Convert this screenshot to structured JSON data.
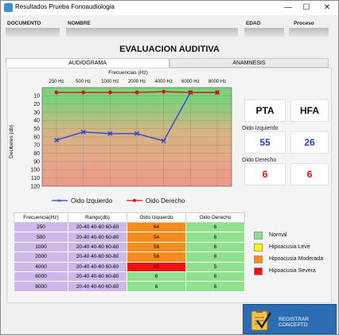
{
  "window": {
    "title": "Resultados Prueba Fonoaudiologia",
    "min_glyph": "—",
    "max_glyph": "☐",
    "close_glyph": "✕"
  },
  "header": {
    "documento_label": "DOCUMENTO",
    "nombre_label": "NOMBRE",
    "edad_label": "EDAD",
    "proceso_label": "Proceso"
  },
  "page_title": "EVALUACION AUDITIVA",
  "tabs": [
    {
      "label": "AUDIOGRAMA",
      "active": true
    },
    {
      "label": "ANAMNESIS",
      "active": false
    }
  ],
  "audiogram": {
    "x_title": "Frecuencias (Hz)",
    "y_title": "Decibeles (db)",
    "freq_labels": [
      "250 Hz",
      "500 Hz",
      "1000 Hz",
      "2000 Hz",
      "4000 Hz",
      "6000 Hz",
      "8000 Hz"
    ],
    "db_ticks": [
      "10",
      "20",
      "30",
      "40",
      "50",
      "60",
      "70",
      "80",
      "90",
      "100",
      "110",
      "120"
    ],
    "db_range": [
      0,
      120
    ],
    "zone_colors": [
      "#7cd27c",
      "#d7b484",
      "#ef9a8a"
    ],
    "left_color": "#1f3fdb",
    "right_color": "#e01010"
  },
  "chart_data": {
    "type": "line",
    "categories": [
      "250 Hz",
      "500 Hz",
      "1000 Hz",
      "2000 Hz",
      "4000 Hz",
      "6000 Hz",
      "8000 Hz"
    ],
    "series": [
      {
        "name": "Oido Izquierdo",
        "values": [
          64,
          54,
          56,
          56,
          65,
          6,
          6
        ],
        "color": "#1f3fdb"
      },
      {
        "name": "Oido Derecho",
        "values": [
          6,
          6,
          6,
          6,
          5,
          6,
          6
        ],
        "color": "#e01010"
      }
    ],
    "title": "",
    "xlabel": "Frecuencias (Hz)",
    "ylabel": "Decibeles (db)",
    "ylim": [
      0,
      120
    ],
    "y_inverted": true,
    "grid": true,
    "legend": "bottom"
  },
  "metrics": {
    "pta_label": "PTA",
    "hfa_label": "HFA",
    "izq_caption": "Oido Izquierdo",
    "der_caption": "Oido Derecho",
    "pta_izq": "55",
    "hfa_izq": "26",
    "pta_der": "6",
    "hfa_der": "6"
  },
  "legend": {
    "izq": "Oido Izquierdo",
    "der": "Oido Derecho"
  },
  "table": {
    "headers": [
      "Frecuencia(Hz)",
      "Rango(db)",
      "Oido Izquierdo",
      "Oido Derecho"
    ],
    "rows": [
      {
        "freq": "250",
        "rango": "20-40 40-60 60-80",
        "izq": "64",
        "der": "6",
        "izq_color": "#f68c1e",
        "der_color": "#8fe08f"
      },
      {
        "freq": "500",
        "rango": "20-40 40-60 60-80",
        "izq": "54",
        "der": "6",
        "izq_color": "#f68c1e",
        "der_color": "#8fe08f"
      },
      {
        "freq": "1000",
        "rango": "20-40 40-60 60-80",
        "izq": "56",
        "der": "6",
        "izq_color": "#f68c1e",
        "der_color": "#8fe08f"
      },
      {
        "freq": "2000",
        "rango": "20-40 40-60 60-80",
        "izq": "56",
        "der": "6",
        "izq_color": "#f68c1e",
        "der_color": "#8fe08f"
      },
      {
        "freq": "4000",
        "rango": "20-40 40-60 60-80",
        "izq": "65",
        "der": "5",
        "izq_color": "#ee1111",
        "der_color": "#8fe08f"
      },
      {
        "freq": "6000",
        "rango": "20-40 40-60 60-80",
        "izq": "6",
        "der": "6",
        "izq_color": "#8fe08f",
        "der_color": "#8fe08f"
      },
      {
        "freq": "8000",
        "rango": "20-40 40-60 60-80",
        "izq": "6",
        "der": "6",
        "izq_color": "#8fe08f",
        "der_color": "#8fe08f"
      }
    ]
  },
  "severity_legend": [
    {
      "label": "Normal",
      "color": "#8fe08f"
    },
    {
      "label": "Hipoacusia Leve",
      "color": "#f7f700"
    },
    {
      "label": "Hipoacusia Moderada",
      "color": "#f68c1e"
    },
    {
      "label": "Hipoacusia Severa",
      "color": "#ee1111"
    }
  ],
  "register_button": {
    "label": "REGISTRAR CONCEPTO"
  }
}
